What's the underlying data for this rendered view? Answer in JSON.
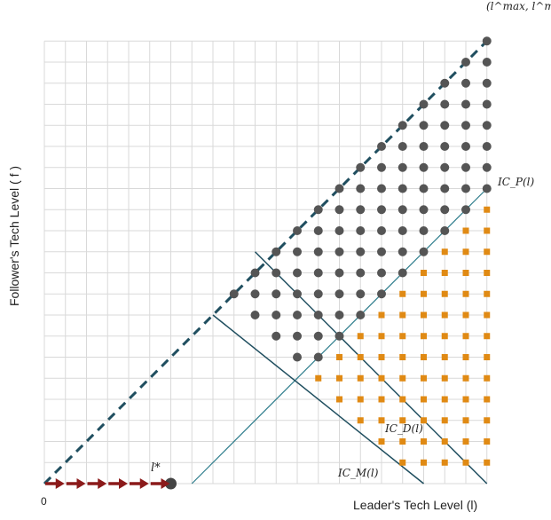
{
  "labels": {
    "y_axis": "Follower's Tech Level ( f )",
    "x_axis": "Leader's Tech Level (l)",
    "origin": "0",
    "corner": "(l^max, l^max)",
    "l_star": "l*",
    "ic_p": "IC_P(l)",
    "ic_d": "IC_D(l)",
    "ic_m": "IC_M(l)"
  },
  "diagram": {
    "grid_columns": 21,
    "grid_rows": 21,
    "colors": {
      "grid": "#d9d9d9",
      "diagonal": "#1f4e5f",
      "ic_lines": "#1f4e5f",
      "ic_p_line": "#2e7d8c",
      "circle_points": "#555555",
      "square_points": "#e08a14",
      "arrows": "#8b1a1a",
      "l_star_dot": "#444444"
    },
    "ic_p": {
      "from": [
        7,
        0
      ],
      "to": [
        21,
        14
      ]
    },
    "ic_d": {
      "from": [
        10,
        11
      ],
      "to": [
        21,
        0
      ]
    },
    "ic_m": {
      "from": [
        8,
        8
      ],
      "to": [
        18,
        0
      ]
    },
    "l_star": [
      6,
      0
    ],
    "arrow_count": 6,
    "circles_rule": "points with f <= l, f >= l - 7, and f >= 18 - l",
    "squares_rule": "points with 1 <= f <= l - 8 and f >= 18 - l"
  }
}
